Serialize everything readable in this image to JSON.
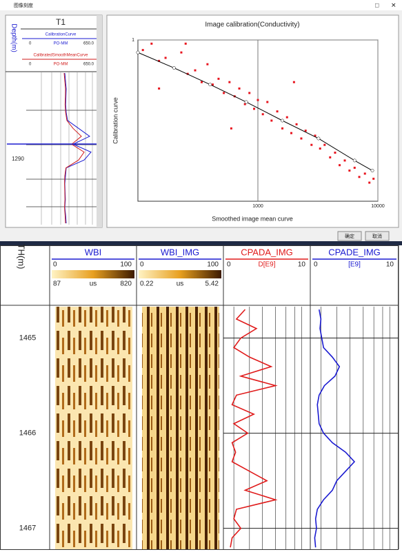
{
  "window": {
    "title": "图像刻度",
    "buttons": [
      "确定",
      "取消"
    ]
  },
  "mini_track": {
    "name": "T1",
    "depth_label": "Depth(m)",
    "depth_tick": 1290,
    "xlim": [
      0,
      650
    ],
    "curves": [
      {
        "name": "CalibrationCurve",
        "color": "#1a1ad0",
        "min": "0",
        "unit": "PO-MM",
        "max": "650.0",
        "values": [
          420,
          425,
          430,
          428,
          426,
          430,
          440,
          520,
          600,
          480,
          610,
          560,
          430,
          425,
          420,
          422,
          424,
          420,
          426,
          430
        ]
      },
      {
        "name": "CalibratedSmoothMeanCurve",
        "color": "#d01a1a",
        "min": "0",
        "unit": "PO-MM",
        "max": "650.0",
        "values": [
          415,
          420,
          425,
          424,
          422,
          426,
          435,
          480,
          540,
          470,
          560,
          520,
          428,
          420,
          418,
          420,
          421,
          418,
          422,
          425
        ]
      }
    ]
  },
  "chart_data": {
    "type": "scatter",
    "title": "Image calibration(Conductivity)",
    "xlabel": "Smoothed image mean curve",
    "ylabel": "Calibration curve",
    "xlim": [
      100,
      10000
    ],
    "ylim": [
      0.01,
      1
    ],
    "xticks": [
      1000,
      10000
    ],
    "yticks": [
      1
    ],
    "log_x": true,
    "log_y": true,
    "grid": true,
    "color": "#e8141e",
    "x": [
      110,
      130,
      150,
      170,
      200,
      230,
      260,
      300,
      340,
      380,
      420,
      470,
      520,
      580,
      640,
      700,
      780,
      850,
      930,
      1000,
      1100,
      1200,
      1300,
      1450,
      1600,
      1750,
      1900,
      2100,
      2300,
      2500,
      2800,
      3000,
      3300,
      3600,
      4000,
      4400,
      4800,
      5300,
      5800,
      6400,
      7000,
      7800,
      8500,
      9200,
      250,
      600,
      2000,
      150
    ],
    "y": [
      0.75,
      0.9,
      0.55,
      0.6,
      0.45,
      0.7,
      0.38,
      0.42,
      0.3,
      0.5,
      0.28,
      0.33,
      0.22,
      0.3,
      0.2,
      0.25,
      0.16,
      0.22,
      0.14,
      0.18,
      0.12,
      0.17,
      0.1,
      0.13,
      0.08,
      0.11,
      0.07,
      0.09,
      0.06,
      0.075,
      0.05,
      0.065,
      0.045,
      0.05,
      0.035,
      0.04,
      0.028,
      0.032,
      0.024,
      0.026,
      0.02,
      0.022,
      0.017,
      0.019,
      0.9,
      0.08,
      0.3,
      0.25
    ],
    "fit": {
      "color": "#000000",
      "x": [
        100,
        200,
        400,
        800,
        1600,
        3200,
        6400,
        9000
      ],
      "y": [
        0.7,
        0.45,
        0.28,
        0.17,
        0.1,
        0.06,
        0.032,
        0.024
      ]
    }
  },
  "log_view": {
    "depth_header": "TH(m)",
    "depth_lim": [
      1464.67,
      1467.22
    ],
    "depth_ticks": [
      1465,
      1466,
      1467
    ],
    "bar_colors": [
      "#fff3c4",
      "#e8a020",
      "#3c1a00"
    ],
    "tracks": [
      {
        "name": "WBI",
        "color": "#1a1ad0",
        "left": "0",
        "right": "100",
        "bar_min": "87",
        "bar_unit": "us",
        "bar_max": "820"
      },
      {
        "name": "WBI_IMG",
        "color": "#1a1ad0",
        "left": "0",
        "right": "100",
        "bar_min": "0.22",
        "bar_unit": "us",
        "bar_max": "5.42"
      },
      {
        "name": "CPADA_IMG",
        "color": "#e01a1a",
        "left": 0,
        "right": 10,
        "unit": "D[E9]"
      },
      {
        "name": "CPADE_IMG",
        "color": "#1a1ad0",
        "left": 0,
        "right": 10,
        "unit": "[E9]"
      }
    ],
    "depths": [
      1464.7,
      1464.8,
      1464.9,
      1465.0,
      1465.1,
      1465.2,
      1465.3,
      1465.4,
      1465.5,
      1465.6,
      1465.7,
      1465.8,
      1465.9,
      1466.0,
      1466.1,
      1466.2,
      1466.3,
      1466.4,
      1466.5,
      1466.6,
      1466.7,
      1466.8,
      1466.9,
      1467.0,
      1467.1,
      1467.2
    ],
    "cpada": [
      2.5,
      1.5,
      3.8,
      2.0,
      1.2,
      3.0,
      5.5,
      2.0,
      6.0,
      1.5,
      1.0,
      3.5,
      1.2,
      2.8,
      1.0,
      1.4,
      1.0,
      3.0,
      5.0,
      2.5,
      6.0,
      1.5,
      1.2,
      2.0,
      1.0,
      0.8
    ],
    "cpade": [
      1.0,
      1.2,
      1.1,
      1.3,
      1.5,
      2.5,
      3.3,
      2.8,
      1.6,
      1.0,
      0.8,
      0.9,
      1.0,
      1.5,
      2.5,
      4.0,
      5.0,
      4.0,
      3.0,
      2.5,
      1.5,
      0.8,
      0.6,
      0.7,
      0.5,
      0.6
    ]
  }
}
